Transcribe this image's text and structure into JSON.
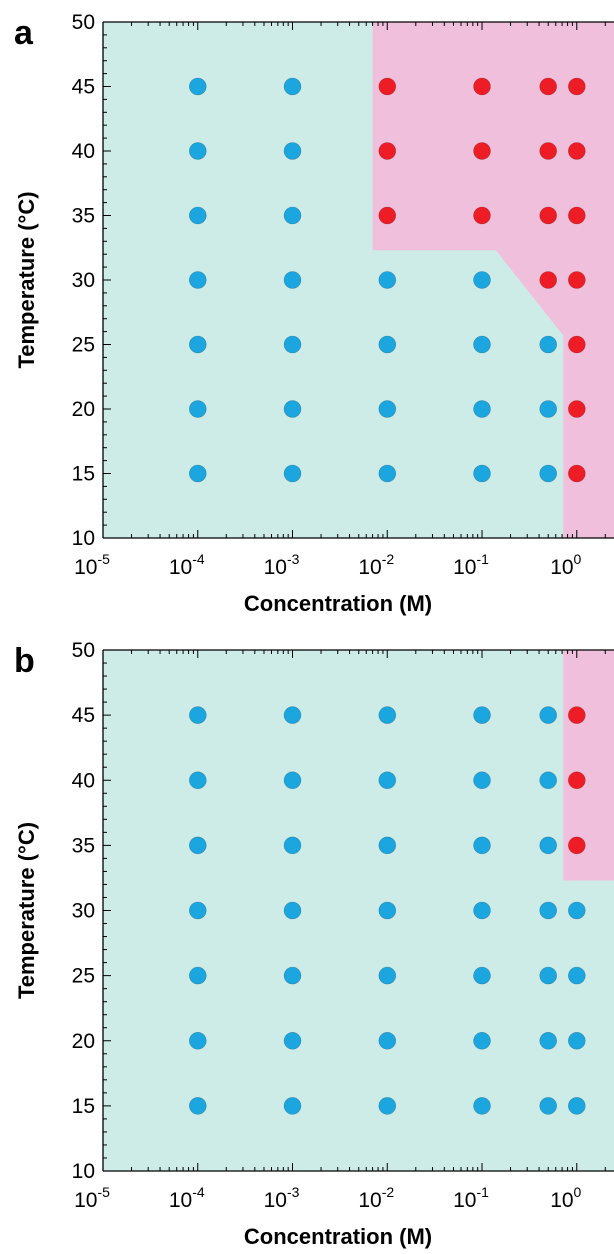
{
  "colors": {
    "blue_region": "#cdece8",
    "pink_region": "#efbfdc",
    "blue_point": "#1ba6e0",
    "red_point": "#ee1c24",
    "axis": "#000000"
  },
  "chart_data": [
    {
      "panel": "a",
      "type": "scatter",
      "xlabel": "Concentration (M)",
      "ylabel": "Temperature (°C)",
      "xscale": "log",
      "xlim": [
        1e-05,
        5
      ],
      "ylim": [
        10,
        50
      ],
      "yticks": [
        10,
        15,
        20,
        25,
        30,
        35,
        40,
        45,
        50
      ],
      "xticks": [
        {
          "value": 1e-05,
          "base": "10",
          "exp": "-5"
        },
        {
          "value": 0.0001,
          "base": "10",
          "exp": "-4"
        },
        {
          "value": 0.001,
          "base": "10",
          "exp": "-3"
        },
        {
          "value": 0.01,
          "base": "10",
          "exp": "-2"
        },
        {
          "value": 0.1,
          "base": "10",
          "exp": "-1"
        },
        {
          "value": 1,
          "base": "10",
          "exp": "0"
        }
      ],
      "grid": false,
      "regions": [
        {
          "color": "pink",
          "polygon": [
            [
              0.007,
              50
            ],
            [
              5,
              50
            ],
            [
              5,
              10
            ],
            [
              0.72,
              10
            ],
            [
              0.72,
              25.7
            ],
            [
              0.14,
              32.3
            ],
            [
              0.007,
              32.3
            ]
          ]
        }
      ],
      "series": [
        {
          "color": "blue",
          "points": [
            [
              0.0001,
              15
            ],
            [
              0.0001,
              20
            ],
            [
              0.0001,
              25
            ],
            [
              0.0001,
              30
            ],
            [
              0.0001,
              35
            ],
            [
              0.0001,
              40
            ],
            [
              0.0001,
              45
            ],
            [
              0.001,
              15
            ],
            [
              0.001,
              20
            ],
            [
              0.001,
              25
            ],
            [
              0.001,
              30
            ],
            [
              0.001,
              35
            ],
            [
              0.001,
              40
            ],
            [
              0.001,
              45
            ],
            [
              0.01,
              15
            ],
            [
              0.01,
              20
            ],
            [
              0.01,
              25
            ],
            [
              0.01,
              30
            ],
            [
              0.1,
              15
            ],
            [
              0.1,
              20
            ],
            [
              0.1,
              25
            ],
            [
              0.1,
              30
            ],
            [
              0.5,
              15
            ],
            [
              0.5,
              20
            ],
            [
              0.5,
              25
            ]
          ]
        },
        {
          "color": "red",
          "points": [
            [
              0.01,
              35
            ],
            [
              0.01,
              40
            ],
            [
              0.01,
              45
            ],
            [
              0.1,
              35
            ],
            [
              0.1,
              40
            ],
            [
              0.1,
              45
            ],
            [
              0.5,
              30
            ],
            [
              0.5,
              35
            ],
            [
              0.5,
              40
            ],
            [
              0.5,
              45
            ],
            [
              1,
              15
            ],
            [
              1,
              20
            ],
            [
              1,
              25
            ],
            [
              1,
              30
            ],
            [
              1,
              35
            ],
            [
              1,
              40
            ],
            [
              1,
              45
            ]
          ]
        }
      ]
    },
    {
      "panel": "b",
      "type": "scatter",
      "xlabel": "Concentration (M)",
      "ylabel": "Temperature (°C)",
      "xscale": "log",
      "xlim": [
        1e-05,
        5
      ],
      "ylim": [
        10,
        50
      ],
      "yticks": [
        10,
        15,
        20,
        25,
        30,
        35,
        40,
        45,
        50
      ],
      "xticks": [
        {
          "value": 1e-05,
          "base": "10",
          "exp": "-5"
        },
        {
          "value": 0.0001,
          "base": "10",
          "exp": "-4"
        },
        {
          "value": 0.001,
          "base": "10",
          "exp": "-3"
        },
        {
          "value": 0.01,
          "base": "10",
          "exp": "-2"
        },
        {
          "value": 0.1,
          "base": "10",
          "exp": "-1"
        },
        {
          "value": 1,
          "base": "10",
          "exp": "0"
        }
      ],
      "grid": false,
      "regions": [
        {
          "color": "pink",
          "polygon": [
            [
              0.72,
              50
            ],
            [
              5,
              50
            ],
            [
              5,
              32.3
            ],
            [
              0.72,
              32.3
            ]
          ]
        }
      ],
      "series": [
        {
          "color": "blue",
          "points": [
            [
              0.0001,
              15
            ],
            [
              0.0001,
              20
            ],
            [
              0.0001,
              25
            ],
            [
              0.0001,
              30
            ],
            [
              0.0001,
              35
            ],
            [
              0.0001,
              40
            ],
            [
              0.0001,
              45
            ],
            [
              0.001,
              15
            ],
            [
              0.001,
              20
            ],
            [
              0.001,
              25
            ],
            [
              0.001,
              30
            ],
            [
              0.001,
              35
            ],
            [
              0.001,
              40
            ],
            [
              0.001,
              45
            ],
            [
              0.01,
              15
            ],
            [
              0.01,
              20
            ],
            [
              0.01,
              25
            ],
            [
              0.01,
              30
            ],
            [
              0.01,
              35
            ],
            [
              0.01,
              40
            ],
            [
              0.01,
              45
            ],
            [
              0.1,
              15
            ],
            [
              0.1,
              20
            ],
            [
              0.1,
              25
            ],
            [
              0.1,
              30
            ],
            [
              0.1,
              35
            ],
            [
              0.1,
              40
            ],
            [
              0.1,
              45
            ],
            [
              0.5,
              15
            ],
            [
              0.5,
              20
            ],
            [
              0.5,
              25
            ],
            [
              0.5,
              30
            ],
            [
              0.5,
              35
            ],
            [
              0.5,
              40
            ],
            [
              0.5,
              45
            ],
            [
              1,
              15
            ],
            [
              1,
              20
            ],
            [
              1,
              25
            ],
            [
              1,
              30
            ]
          ]
        },
        {
          "color": "red",
          "points": [
            [
              1,
              35
            ],
            [
              1,
              40
            ],
            [
              1,
              45
            ]
          ]
        }
      ]
    }
  ]
}
